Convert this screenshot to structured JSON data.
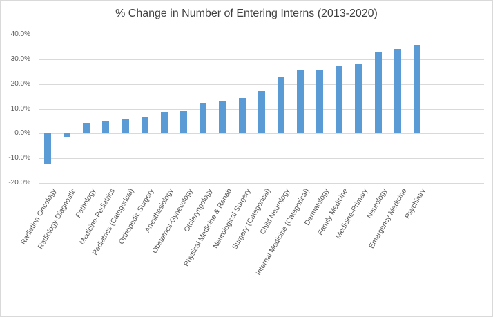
{
  "chart": {
    "title": "% Change in Number of Entering Interns (2013-2020)"
  },
  "chart_data": {
    "type": "bar",
    "title": "% Change in Number of Entering Interns (2013-2020)",
    "categories": [
      "Radiation Oncology",
      "Radiology-Diagnostic",
      "Pathology",
      "Medicine-Pediatrics",
      "Pediatrics (Categorical)",
      "Orthopedic Surgery",
      "Anesthesiology",
      "Obstetrics-Gynecology",
      "Otolaryngology",
      "Physical Medicine & Rehab",
      "Neurological Surgery",
      "Surgery (Categorical)",
      "Child Neurology",
      "Internal Medicine (Categorical)",
      "Dermatology",
      "Family Medicine",
      "Medicine-Primary",
      "Neurology",
      "Emergency Medicine",
      "Psychiatry"
    ],
    "values": [
      -12.5,
      -1.6,
      4.4,
      5.1,
      6.0,
      6.6,
      8.8,
      9.1,
      12.3,
      13.2,
      14.3,
      17.0,
      22.6,
      25.4,
      25.5,
      27.3,
      27.9,
      33.0,
      34.2,
      35.8
    ],
    "xlabel": "",
    "ylabel": "",
    "ylim": [
      -20,
      40
    ],
    "ytick_values": [
      40,
      30,
      20,
      10,
      0,
      -10,
      -20
    ],
    "ytick_labels": [
      "40.0%",
      "30.0%",
      "20.0%",
      "10.0%",
      "0.0%",
      "-10.0%",
      "-20.0%"
    ],
    "grid": true,
    "legend": false,
    "bar_color": "#5B9BD5",
    "gridline_color": "#D9D9D9",
    "axis_text_color": "#595959",
    "title_color": "#404040"
  }
}
